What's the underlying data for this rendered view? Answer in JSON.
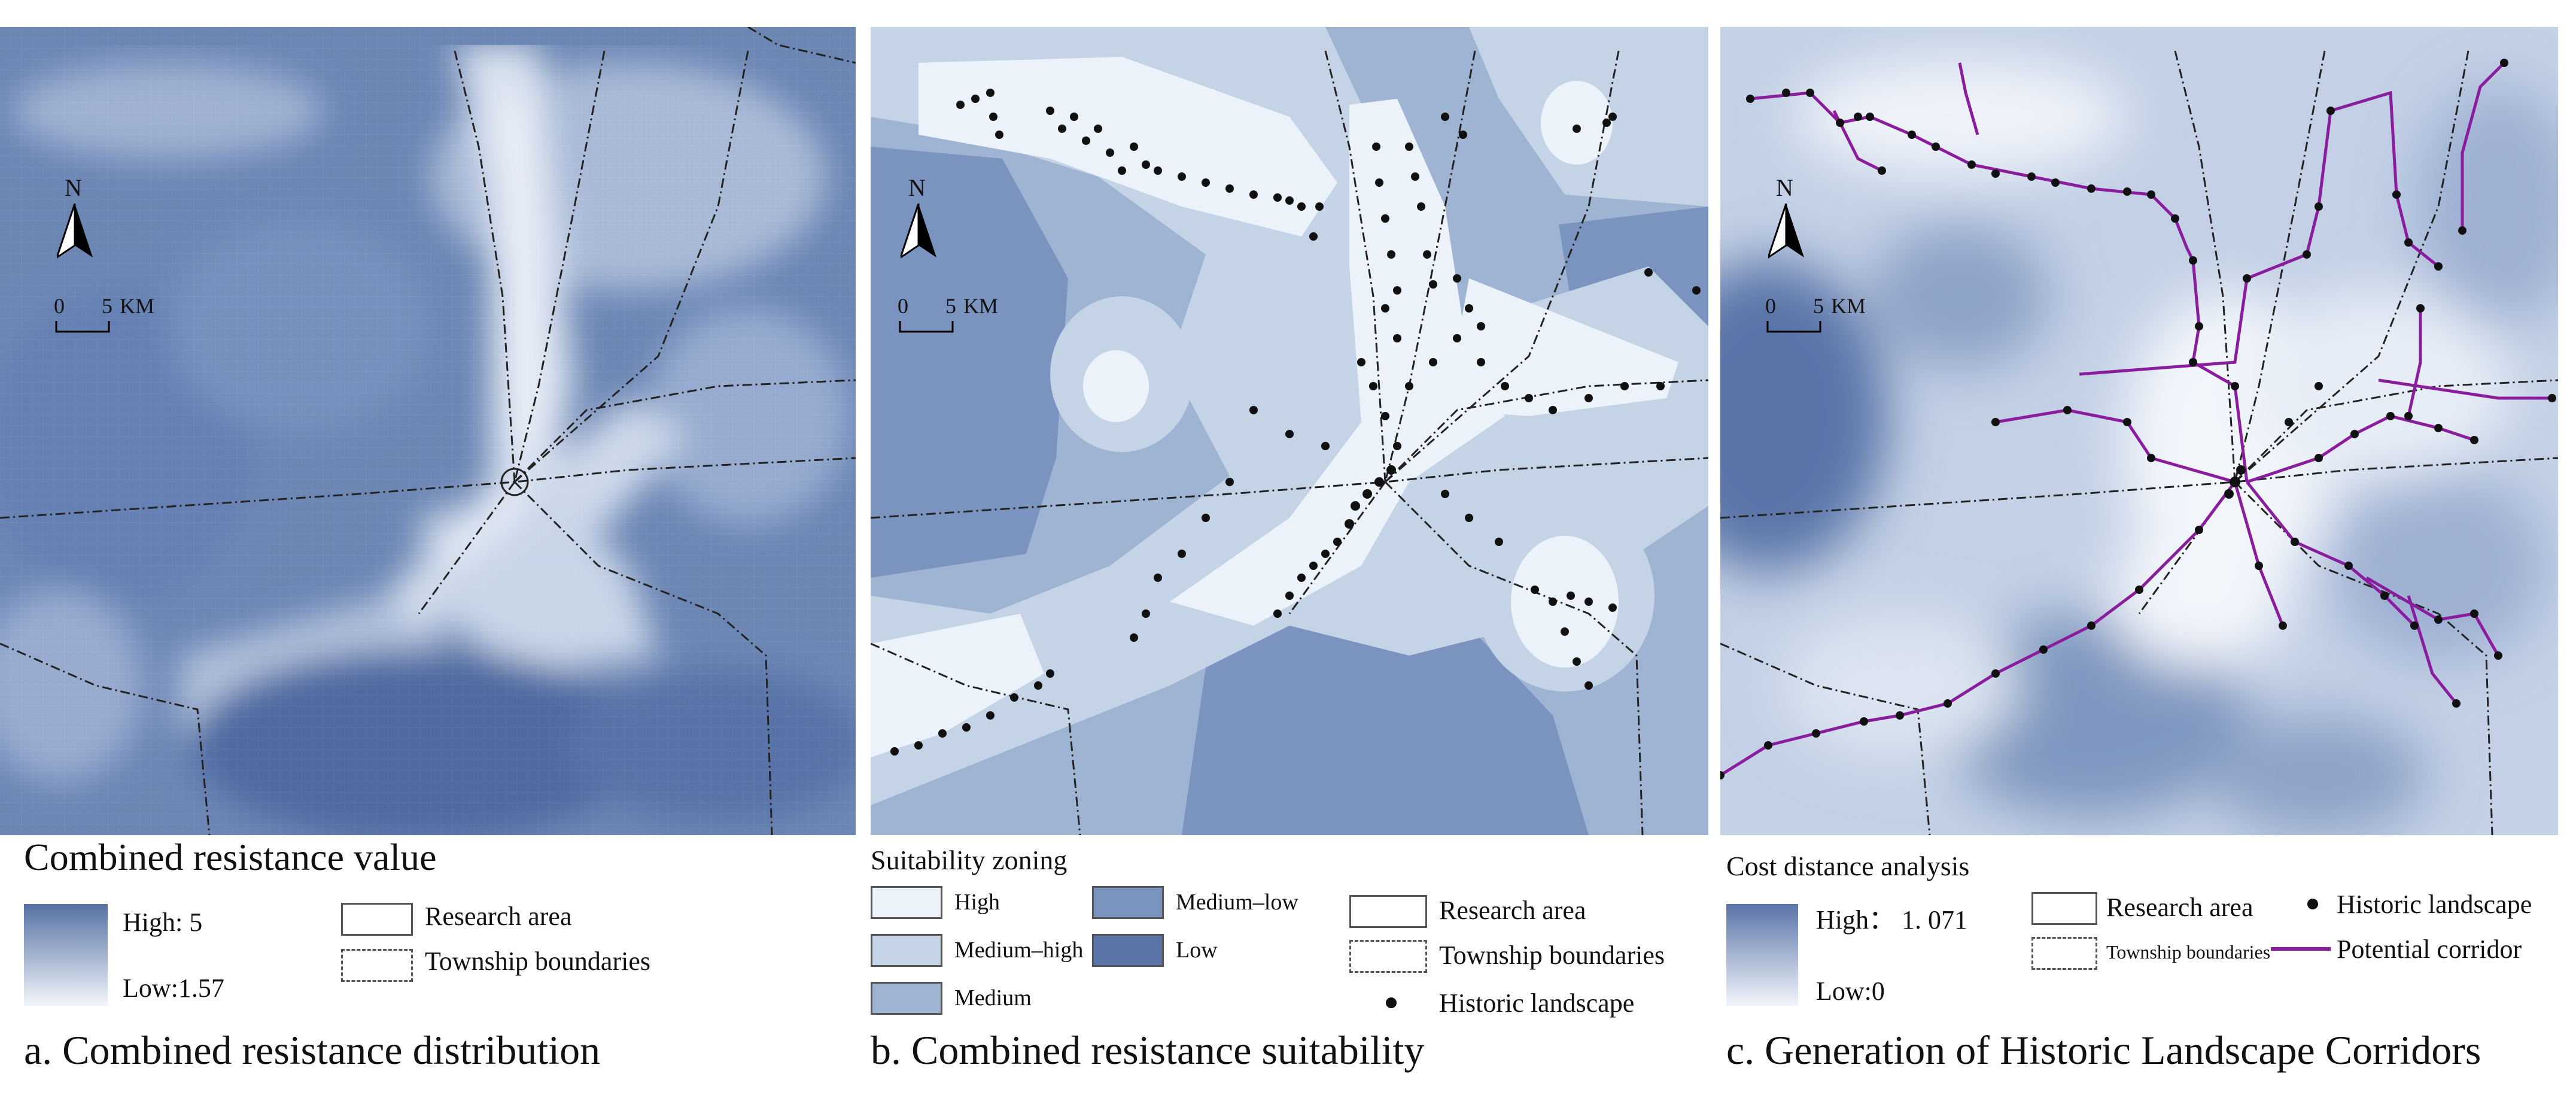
{
  "panels": [
    {
      "caption": "a. Combined resistance distribution",
      "legend": {
        "title": "Combined resistance value",
        "high": "High: 5",
        "low": "Low:1.57",
        "research_area": "Research area",
        "township": "Township boundaries"
      },
      "scale": {
        "north": "N",
        "zero": "0",
        "five": "5",
        "unit": "KM"
      }
    },
    {
      "caption": "b. Combined resistance suitability",
      "legend": {
        "title": "Suitability zoning",
        "classes": [
          "High",
          "Medium–high",
          "Medium",
          "Medium–low",
          "Low"
        ],
        "research_area": "Research area",
        "township": "Township boundaries",
        "historic": "Historic landscape"
      },
      "scale": {
        "north": "N",
        "zero": "0",
        "five": "5",
        "unit": "KM"
      }
    },
    {
      "caption": "c. Generation of Historic Landscape Corridors",
      "legend": {
        "title": "Cost distance analysis",
        "high": "High： 1. 071",
        "low": "Low:0",
        "research_area": "Research area",
        "township": "Township boundaries",
        "historic": "Historic landscape",
        "corridor": "Potential corridor"
      },
      "scale": {
        "north": "N",
        "zero": "0",
        "five": "5",
        "unit": "KM"
      }
    }
  ],
  "colors": {
    "high_resistance": "#5571a3",
    "low_resistance": "#f2f6fb",
    "suit_high": "#ecf2f9",
    "suit_medium_high": "#c5d3e6",
    "suit_medium": "#9fb4d2",
    "suit_medium_low": "#7a93bf",
    "suit_low": "#5a74a8",
    "corridor": "#8a1d9e",
    "boundary": "#222222"
  }
}
